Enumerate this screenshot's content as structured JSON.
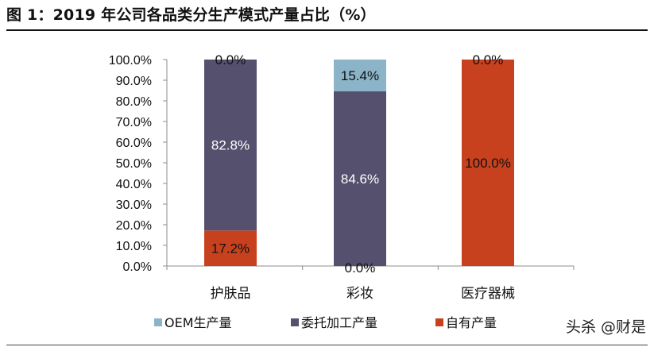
{
  "figure": {
    "title": "图 1：2019 年公司各品类分生产模式产量占比（%）"
  },
  "watermark": "头杀 @财是",
  "chart_data": {
    "type": "bar",
    "stacked": true,
    "categories": [
      "护肤品",
      "彩妆",
      "医疗器械"
    ],
    "series": [
      {
        "name": "自有产量",
        "color": "#C8411E",
        "values": [
          17.2,
          0.0,
          100.0
        ],
        "labels": [
          "17.2%",
          "0.0%",
          "100.0%"
        ]
      },
      {
        "name": "委托加工产量",
        "color": "#56506F",
        "values": [
          82.8,
          84.6,
          0.0
        ],
        "labels": [
          "82.8%",
          "84.6%",
          ""
        ]
      },
      {
        "name": "OEM生产量",
        "color": "#8CB4C8",
        "values": [
          0.0,
          15.4,
          0.0
        ],
        "labels": [
          "0.0%",
          "15.4%",
          "0.0%"
        ]
      }
    ],
    "legend_order": [
      2,
      1,
      0
    ],
    "y_ticks": [
      "0.0%",
      "10.0%",
      "20.0%",
      "30.0%",
      "40.0%",
      "50.0%",
      "60.0%",
      "70.0%",
      "80.0%",
      "90.0%",
      "100.0%"
    ],
    "ylim": [
      0,
      100
    ],
    "grid": false,
    "legend_position": "bottom"
  }
}
